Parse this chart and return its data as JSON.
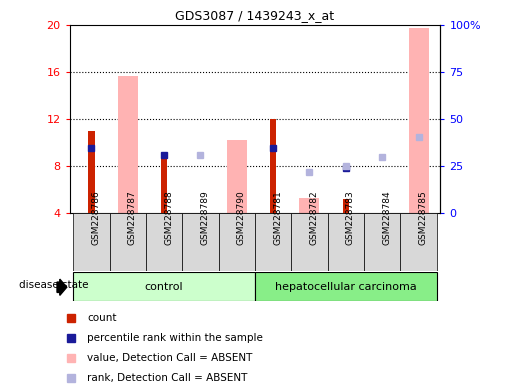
{
  "title": "GDS3087 / 1439243_x_at",
  "samples": [
    "GSM228786",
    "GSM228787",
    "GSM228788",
    "GSM228789",
    "GSM228790",
    "GSM228781",
    "GSM228782",
    "GSM228783",
    "GSM228784",
    "GSM228785"
  ],
  "count": [
    11.0,
    null,
    9.1,
    null,
    null,
    12.0,
    null,
    5.2,
    null,
    null
  ],
  "percentile_rank": [
    9.5,
    null,
    8.9,
    null,
    null,
    9.5,
    null,
    7.8,
    null,
    null
  ],
  "value_absent": [
    null,
    15.7,
    null,
    null,
    10.2,
    null,
    5.3,
    null,
    null,
    19.7
  ],
  "rank_absent": [
    null,
    null,
    null,
    8.9,
    null,
    null,
    7.5,
    8.0,
    8.8,
    10.5
  ],
  "ylim": [
    4,
    20
  ],
  "y2lim": [
    0,
    100
  ],
  "yticks": [
    4,
    8,
    12,
    16,
    20
  ],
  "y2ticks": [
    0,
    25,
    50,
    75,
    100
  ],
  "y2ticklabels": [
    "0",
    "25",
    "50",
    "75",
    "100%"
  ],
  "count_color": "#cc2200",
  "percentile_color": "#1a1a99",
  "value_absent_color": "#ffb3b3",
  "rank_absent_color": "#b3b3dd",
  "control_bg": "#ccffcc",
  "cancer_bg": "#88ee88",
  "label_bg": "#d8d8d8"
}
